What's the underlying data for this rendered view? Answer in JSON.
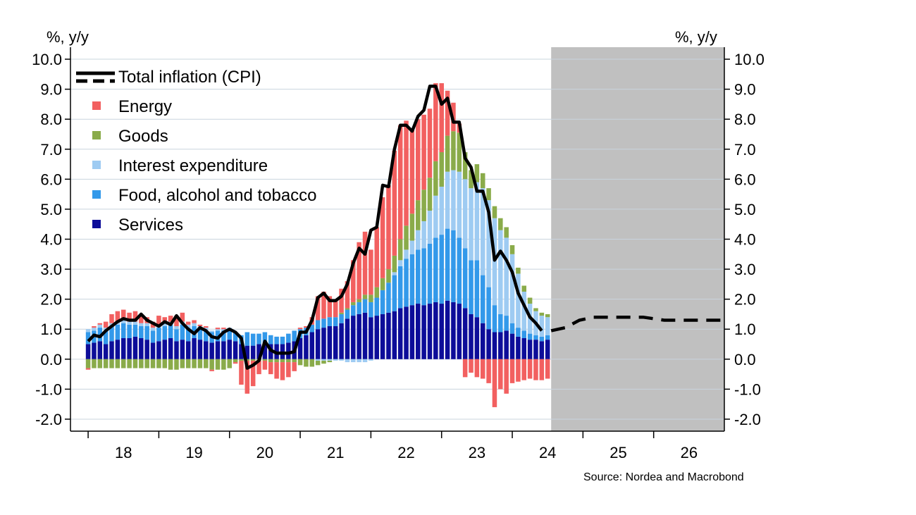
{
  "chart_data": {
    "type": "bar",
    "ylabel_left": "%, y/y",
    "ylabel_right": "%, y/y",
    "ylim": [
      -2.4,
      10.4
    ],
    "yticks": [
      "10.0",
      "9.0",
      "8.0",
      "7.0",
      "6.0",
      "5.0",
      "4.0",
      "3.0",
      "2.0",
      "1.0",
      "0.0",
      "-1.0",
      "-2.0"
    ],
    "ytick_values": [
      10,
      9,
      8,
      7,
      6,
      5,
      4,
      3,
      2,
      1,
      0,
      -1,
      -2
    ],
    "x_years": [
      "18",
      "19",
      "20",
      "21",
      "22",
      "23",
      "24",
      "25",
      "26"
    ],
    "x_start": 2017.75,
    "x_end": 2027.0,
    "forecast_start": 2024.55,
    "forecast_shade": "#c0c0c0",
    "grid": true,
    "legend_position": "top-left",
    "source": "Source: Nordea and Macrobond",
    "series": [
      {
        "name": "Energy",
        "color": "#f26060"
      },
      {
        "name": "Goods",
        "color": "#8aab4a"
      },
      {
        "name": "Interest expenditure",
        "color": "#9ecbf2"
      },
      {
        "name": "Food, alcohol and tobacco",
        "color": "#3399ea"
      },
      {
        "name": "Services",
        "color": "#0d0d99"
      }
    ],
    "line_series": {
      "name": "Total inflation (CPI)",
      "color": "#000000"
    },
    "bars": [
      {
        "x": "2018-01",
        "services": 0.5,
        "food": 0.4,
        "interest": 0.1,
        "goods": -0.3,
        "energy": -0.05
      },
      {
        "x": "2018-02",
        "services": 0.55,
        "food": 0.4,
        "interest": 0.1,
        "goods": -0.3,
        "energy": 0.05
      },
      {
        "x": "2018-03",
        "services": 0.6,
        "food": 0.45,
        "interest": 0.1,
        "goods": -0.3,
        "energy": 0.05
      },
      {
        "x": "2018-04",
        "services": 0.5,
        "food": 0.45,
        "interest": 0.1,
        "goods": -0.3,
        "energy": 0.2
      },
      {
        "x": "2018-05",
        "services": 0.6,
        "food": 0.5,
        "interest": 0.1,
        "goods": -0.3,
        "energy": 0.3
      },
      {
        "x": "2018-06",
        "services": 0.65,
        "food": 0.5,
        "interest": 0.1,
        "goods": -0.3,
        "energy": 0.35
      },
      {
        "x": "2018-07",
        "services": 0.7,
        "food": 0.5,
        "interest": 0.1,
        "goods": -0.3,
        "energy": 0.35
      },
      {
        "x": "2018-08",
        "services": 0.7,
        "food": 0.45,
        "interest": 0.1,
        "goods": -0.3,
        "energy": 0.3
      },
      {
        "x": "2018-09",
        "services": 0.75,
        "food": 0.4,
        "interest": 0.1,
        "goods": -0.3,
        "energy": 0.35
      },
      {
        "x": "2018-10",
        "services": 0.7,
        "food": 0.4,
        "interest": 0.1,
        "goods": -0.3,
        "energy": 0.3
      },
      {
        "x": "2018-11",
        "services": 0.65,
        "food": 0.45,
        "interest": 0.1,
        "goods": -0.3,
        "energy": 0.2
      },
      {
        "x": "2018-12",
        "services": 0.55,
        "food": 0.4,
        "interest": 0.1,
        "goods": -0.3,
        "energy": 0.2
      },
      {
        "x": "2019-01",
        "services": 0.6,
        "food": 0.45,
        "interest": 0.1,
        "goods": -0.3,
        "energy": 0.3
      },
      {
        "x": "2019-02",
        "services": 0.65,
        "food": 0.45,
        "interest": 0.1,
        "goods": -0.3,
        "energy": 0.2
      },
      {
        "x": "2019-03",
        "services": 0.7,
        "food": 0.45,
        "interest": 0.1,
        "goods": -0.35,
        "energy": 0.2
      },
      {
        "x": "2019-04",
        "services": 0.6,
        "food": 0.4,
        "interest": 0.1,
        "goods": -0.35,
        "energy": 0.35
      },
      {
        "x": "2019-05",
        "services": 0.65,
        "food": 0.5,
        "interest": 0.1,
        "goods": -0.3,
        "energy": 0.3
      },
      {
        "x": "2019-06",
        "services": 0.6,
        "food": 0.45,
        "interest": 0.1,
        "goods": -0.3,
        "energy": 0.1
      },
      {
        "x": "2019-07",
        "services": 0.7,
        "food": 0.4,
        "interest": 0.1,
        "goods": -0.3,
        "energy": 0.1
      },
      {
        "x": "2019-08",
        "services": 0.65,
        "food": 0.35,
        "interest": 0.1,
        "goods": -0.3,
        "energy": 0.05
      },
      {
        "x": "2019-09",
        "services": 0.6,
        "food": 0.35,
        "interest": 0.1,
        "goods": -0.3,
        "energy": 0.05
      },
      {
        "x": "2019-10",
        "services": 0.55,
        "food": 0.35,
        "interest": 0.05,
        "goods": -0.35,
        "energy": -0.05
      },
      {
        "x": "2019-11",
        "services": 0.6,
        "food": 0.35,
        "interest": 0.05,
        "goods": -0.35,
        "energy": 0.05
      },
      {
        "x": "2019-12",
        "services": 0.6,
        "food": 0.35,
        "interest": 0.05,
        "goods": -0.35,
        "energy": 0.05
      },
      {
        "x": "2020-01",
        "services": 0.65,
        "food": 0.35,
        "interest": 0.05,
        "goods": -0.3,
        "energy": 0.0
      },
      {
        "x": "2020-02",
        "services": 0.6,
        "food": 0.3,
        "interest": 0.0,
        "goods": -0.1,
        "energy": -0.05
      },
      {
        "x": "2020-03",
        "services": 0.5,
        "food": 0.3,
        "interest": 0.0,
        "goods": -0.05,
        "energy": -0.8
      },
      {
        "x": "2020-04",
        "services": 0.45,
        "food": 0.45,
        "interest": 0.0,
        "goods": -0.05,
        "energy": -1.1
      },
      {
        "x": "2020-05",
        "services": 0.45,
        "food": 0.4,
        "interest": 0.0,
        "goods": -0.05,
        "energy": -0.85
      },
      {
        "x": "2020-06",
        "services": 0.5,
        "food": 0.35,
        "interest": 0.0,
        "goods": -0.05,
        "energy": -0.45
      },
      {
        "x": "2020-07",
        "services": 0.55,
        "food": 0.35,
        "interest": 0.0,
        "goods": -0.05,
        "energy": -0.3
      },
      {
        "x": "2020-08",
        "services": 0.5,
        "food": 0.3,
        "interest": 0.0,
        "goods": -0.1,
        "energy": -0.4
      },
      {
        "x": "2020-09",
        "services": 0.5,
        "food": 0.25,
        "interest": 0.0,
        "goods": -0.1,
        "energy": -0.55
      },
      {
        "x": "2020-10",
        "services": 0.5,
        "food": 0.25,
        "interest": 0.0,
        "goods": -0.1,
        "energy": -0.6
      },
      {
        "x": "2020-11",
        "services": 0.55,
        "food": 0.3,
        "interest": 0.0,
        "goods": -0.1,
        "energy": -0.5
      },
      {
        "x": "2020-12",
        "services": 0.6,
        "food": 0.35,
        "interest": 0.0,
        "goods": -0.1,
        "energy": -0.3
      },
      {
        "x": "2021-01",
        "services": 0.7,
        "food": 0.3,
        "interest": 0.0,
        "goods": -0.2,
        "energy": 0.05
      },
      {
        "x": "2021-02",
        "services": 0.8,
        "food": 0.25,
        "interest": 0.0,
        "goods": -0.25,
        "energy": 0.05
      },
      {
        "x": "2021-03",
        "services": 0.9,
        "food": 0.25,
        "interest": 0.0,
        "goods": -0.25,
        "energy": 0.25
      },
      {
        "x": "2021-04",
        "services": 1.0,
        "food": 0.3,
        "interest": -0.05,
        "goods": -0.15,
        "energy": 0.8
      },
      {
        "x": "2021-05",
        "services": 1.05,
        "food": 0.3,
        "interest": -0.05,
        "goods": -0.1,
        "energy": 0.9
      },
      {
        "x": "2021-06",
        "services": 1.1,
        "food": 0.3,
        "interest": -0.05,
        "goods": -0.05,
        "energy": 0.7
      },
      {
        "x": "2021-07",
        "services": 1.1,
        "food": 0.3,
        "interest": -0.05,
        "goods": 0.0,
        "energy": 0.6
      },
      {
        "x": "2021-08",
        "services": 1.2,
        "food": 0.3,
        "interest": -0.05,
        "goods": 0.05,
        "energy": 0.8
      },
      {
        "x": "2021-09",
        "services": 1.35,
        "food": 0.3,
        "interest": -0.1,
        "goods": 0.05,
        "energy": 0.9
      },
      {
        "x": "2021-10",
        "services": 1.45,
        "food": 0.35,
        "interest": -0.1,
        "goods": 0.1,
        "energy": 1.4
      },
      {
        "x": "2021-11",
        "services": 1.5,
        "food": 0.4,
        "interest": -0.1,
        "goods": 0.1,
        "energy": 1.9
      },
      {
        "x": "2021-12",
        "services": 1.55,
        "food": 0.45,
        "interest": -0.1,
        "goods": 0.15,
        "energy": 2.1
      },
      {
        "x": "2022-01",
        "services": 1.4,
        "food": 0.5,
        "interest": -0.05,
        "goods": 0.25,
        "energy": 1.5
      },
      {
        "x": "2022-02",
        "services": 1.45,
        "food": 0.6,
        "interest": 0.0,
        "goods": 0.35,
        "energy": 2.0
      },
      {
        "x": "2022-03",
        "services": 1.5,
        "food": 0.8,
        "interest": 0.0,
        "goods": 0.4,
        "energy": 2.7
      },
      {
        "x": "2022-04",
        "services": 1.55,
        "food": 1.0,
        "interest": 0.0,
        "goods": 0.45,
        "energy": 2.8
      },
      {
        "x": "2022-05",
        "services": 1.6,
        "food": 1.2,
        "interest": 0.1,
        "goods": 0.55,
        "energy": 3.5
      },
      {
        "x": "2022-06",
        "services": 1.7,
        "food": 1.4,
        "interest": 0.2,
        "goods": 0.7,
        "energy": 3.8
      },
      {
        "x": "2022-07",
        "services": 1.75,
        "food": 1.6,
        "interest": 0.3,
        "goods": 0.8,
        "energy": 3.5
      },
      {
        "x": "2022-08",
        "services": 1.8,
        "food": 1.7,
        "interest": 0.45,
        "goods": 0.9,
        "energy": 2.8
      },
      {
        "x": "2022-09",
        "services": 1.85,
        "food": 1.8,
        "interest": 0.65,
        "goods": 1.0,
        "energy": 2.7
      },
      {
        "x": "2022-10",
        "services": 1.8,
        "food": 1.9,
        "interest": 0.9,
        "goods": 1.05,
        "energy": 2.5
      },
      {
        "x": "2022-11",
        "services": 1.85,
        "food": 2.0,
        "interest": 1.1,
        "goods": 1.1,
        "energy": 2.3
      },
      {
        "x": "2022-12",
        "services": 1.9,
        "food": 2.15,
        "interest": 1.4,
        "goods": 1.15,
        "energy": 2.6
      },
      {
        "x": "2023-01",
        "services": 1.85,
        "food": 2.3,
        "interest": 1.6,
        "goods": 1.15,
        "energy": 2.3
      },
      {
        "x": "2023-02",
        "services": 1.95,
        "food": 2.4,
        "interest": 1.9,
        "goods": 1.2,
        "energy": 1.5
      },
      {
        "x": "2023-03",
        "services": 1.9,
        "food": 2.4,
        "interest": 2.0,
        "goods": 1.3,
        "energy": 0.95
      },
      {
        "x": "2023-04",
        "services": 1.85,
        "food": 2.2,
        "interest": 2.2,
        "goods": 1.3,
        "energy": 0.3
      },
      {
        "x": "2023-05",
        "services": 1.7,
        "food": 2.0,
        "interest": 2.3,
        "goods": 0.9,
        "energy": -0.6
      },
      {
        "x": "2023-06",
        "services": 1.5,
        "food": 1.8,
        "interest": 2.4,
        "goods": 0.6,
        "energy": -0.45
      },
      {
        "x": "2023-07",
        "services": 1.4,
        "food": 1.9,
        "interest": 2.6,
        "goods": 0.6,
        "energy": -0.6
      },
      {
        "x": "2023-08",
        "services": 1.2,
        "food": 1.6,
        "interest": 2.9,
        "goods": 0.5,
        "energy": -0.65
      },
      {
        "x": "2023-09",
        "services": 1.0,
        "food": 1.4,
        "interest": 2.9,
        "goods": 0.4,
        "energy": -0.8
      },
      {
        "x": "2023-10",
        "services": 0.9,
        "food": 0.9,
        "interest": 2.9,
        "goods": 0.4,
        "energy": -1.6
      },
      {
        "x": "2023-11",
        "services": 0.9,
        "food": 0.6,
        "interest": 2.8,
        "goods": 0.4,
        "energy": -1.0
      },
      {
        "x": "2023-12",
        "services": 0.95,
        "food": 0.5,
        "interest": 2.6,
        "goods": 0.35,
        "energy": -1.15
      },
      {
        "x": "2024-01",
        "services": 0.85,
        "food": 0.35,
        "interest": 2.3,
        "goods": 0.3,
        "energy": -0.8
      },
      {
        "x": "2024-02",
        "services": 0.75,
        "food": 0.3,
        "interest": 1.8,
        "goods": 0.2,
        "energy": -0.75
      },
      {
        "x": "2024-03",
        "services": 0.7,
        "food": 0.25,
        "interest": 1.3,
        "goods": 0.2,
        "energy": -0.7
      },
      {
        "x": "2024-04",
        "services": 0.65,
        "food": 0.2,
        "interest": 1.0,
        "goods": 0.2,
        "energy": -0.65
      },
      {
        "x": "2024-05",
        "services": 0.65,
        "food": 0.15,
        "interest": 0.8,
        "goods": 0.1,
        "energy": -0.7
      },
      {
        "x": "2024-06",
        "services": 0.6,
        "food": 0.15,
        "interest": 0.7,
        "goods": 0.1,
        "energy": -0.7
      },
      {
        "x": "2024-07",
        "services": 0.65,
        "food": 0.15,
        "interest": 0.6,
        "goods": 0.1,
        "energy": -0.65
      }
    ],
    "cpi": [
      0.6,
      0.8,
      0.75,
      0.95,
      1.1,
      1.25,
      1.35,
      1.3,
      1.3,
      1.5,
      1.3,
      1.2,
      1.1,
      1.25,
      1.15,
      1.45,
      1.2,
      1.0,
      0.85,
      1.05,
      0.95,
      0.75,
      0.7,
      0.9,
      1.0,
      0.9,
      0.7,
      -0.3,
      -0.2,
      -0.05,
      0.6,
      0.3,
      0.2,
      0.2,
      0.2,
      0.25,
      0.9,
      0.9,
      1.3,
      2.05,
      2.2,
      1.95,
      1.95,
      2.1,
      2.5,
      3.2,
      3.7,
      3.5,
      4.3,
      4.4,
      5.8,
      5.75,
      7.0,
      7.8,
      7.8,
      7.6,
      8.1,
      8.3,
      9.1,
      9.1,
      8.5,
      8.7,
      7.9,
      7.9,
      6.7,
      6.4,
      5.6,
      5.6,
      4.9,
      3.3,
      3.6,
      3.3,
      2.9,
      2.2,
      1.8,
      1.4,
      1.2,
      0.95
    ],
    "forecast": [
      [
        2024.55,
        0.95
      ],
      [
        2024.75,
        1.05
      ],
      [
        2024.95,
        1.3
      ],
      [
        2025.15,
        1.4
      ],
      [
        2025.5,
        1.4
      ],
      [
        2025.85,
        1.4
      ],
      [
        2026.15,
        1.3
      ],
      [
        2026.6,
        1.3
      ],
      [
        2026.95,
        1.3
      ]
    ]
  }
}
